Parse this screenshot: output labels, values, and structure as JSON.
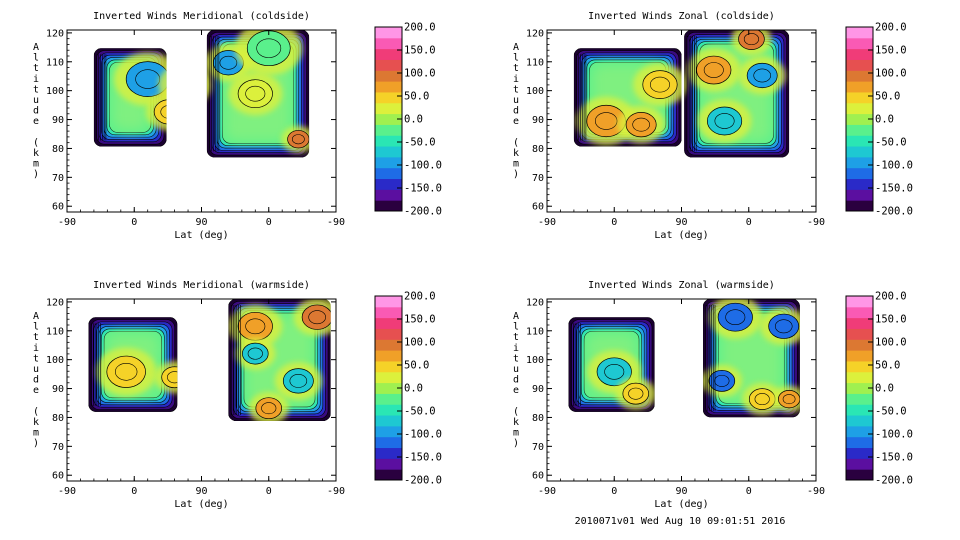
{
  "footer": "2010071v01 Wed Aug 10 09:01:51 2016",
  "colorbar": {
    "ticks": [
      "200.0",
      "150.0",
      "100.0",
      "50.0",
      "0.0",
      "-50.0",
      "-100.0",
      "-150.0",
      "-200.0"
    ],
    "colors": [
      "#2a003f",
      "#5b0fa0",
      "#2a2ac8",
      "#1e6ce6",
      "#1ea0e6",
      "#1ec8d2",
      "#2ae6b4",
      "#5af08c",
      "#a0f050",
      "#dcf03c",
      "#f5d228",
      "#f0a028",
      "#dc7832",
      "#e65050",
      "#f03c78",
      "#fa5ab4",
      "#ff96e6"
    ]
  },
  "chart_data": [
    {
      "type": "heatmap",
      "title": "Inverted Winds Meridional (coldside)",
      "xlabel": "Lat (deg)",
      "ylabel": "Altitude (km)",
      "xticks": [
        "-90",
        "0",
        "90",
        "0",
        "-90"
      ],
      "yticks": [
        "60",
        "70",
        "80",
        "90",
        "100",
        "110",
        "120"
      ],
      "ylim": [
        58,
        121
      ],
      "zlim": [
        -200,
        200
      ]
    },
    {
      "type": "heatmap",
      "title": "Inverted Winds Zonal (coldside)",
      "xlabel": "Lat (deg)",
      "ylabel": "Altitude (km)",
      "xticks": [
        "-90",
        "0",
        "90",
        "0",
        "-90"
      ],
      "yticks": [
        "60",
        "70",
        "80",
        "90",
        "100",
        "110",
        "120"
      ],
      "ylim": [
        58,
        121
      ],
      "zlim": [
        -200,
        200
      ]
    },
    {
      "type": "heatmap",
      "title": "Inverted Winds Meridional (warmside)",
      "xlabel": "Lat (deg)",
      "ylabel": "Altitude (km)",
      "xticks": [
        "-90",
        "0",
        "90",
        "0",
        "-90"
      ],
      "yticks": [
        "60",
        "70",
        "80",
        "90",
        "100",
        "110",
        "120"
      ],
      "ylim": [
        58,
        121
      ],
      "zlim": [
        -200,
        200
      ]
    },
    {
      "type": "heatmap",
      "title": "Inverted Winds Zonal (warmside)",
      "xlabel": "Lat (deg)",
      "ylabel": "Altitude (km)",
      "xticks": [
        "-90",
        "0",
        "90",
        "0",
        "-90"
      ],
      "yticks": [
        "60",
        "70",
        "80",
        "90",
        "100",
        "110",
        "120"
      ],
      "ylim": [
        58,
        121
      ],
      "zlim": [
        -200,
        200
      ]
    }
  ]
}
